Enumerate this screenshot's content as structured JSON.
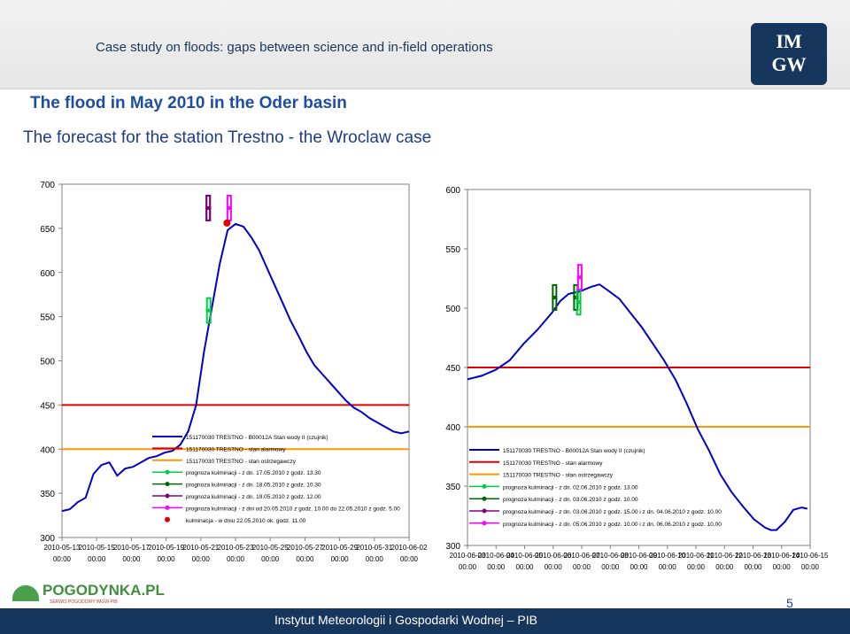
{
  "header": {
    "text": "Case study on floods: gaps between science and in-field operations",
    "logo_line1": "IM",
    "logo_line2": "GW"
  },
  "title": {
    "line1": "The flood in May 2010 in the Oder basin",
    "line2": "The forecast for the station Trestno - the Wroclaw case"
  },
  "footer": {
    "institute": "Instytut Meteorologii i Gospodarki Wodnej – PIB",
    "page": "5",
    "brand_name": "POGODYNKA.PL",
    "brand_sub": "SERWIS POGODOWY IMGW-PIB"
  },
  "colors": {
    "water_level": "#0000cc",
    "alarm": "#e00000",
    "warning": "#ff9900",
    "forecast_green": "#00cc44",
    "forecast_dark_green": "#006600",
    "forecast_purple": "#800080",
    "forecast_magenta": "#ff00ff",
    "culmination": "#e00000"
  },
  "chart_data": [
    {
      "type": "line",
      "ylim": [
        300,
        700
      ],
      "y_ticks": [
        "700",
        "650",
        "600",
        "550",
        "500",
        "450",
        "400",
        "350",
        "300"
      ],
      "x_ticks": [
        [
          "2010-05-13",
          "00:00"
        ],
        [
          "2010-05-15",
          "00:00"
        ],
        [
          "2010-05-17",
          "00:00"
        ],
        [
          "2010-05-19",
          "00:00"
        ],
        [
          "2010-05-21",
          "00:00"
        ],
        [
          "2010-05-23",
          "00:00"
        ],
        [
          "2010-05-25",
          "00:00"
        ],
        [
          "2010-05-27",
          "00:00"
        ],
        [
          "2010-05-29",
          "00:00"
        ],
        [
          "2010-05-31",
          "00:00"
        ],
        [
          "2010-06-02",
          "00:00"
        ]
      ],
      "series": [
        {
          "name": "151170030 TRESTNO - B00012A Stan wody II (czujnik)",
          "x": [
            0,
            0.5,
            1.0,
            1.5,
            2.0,
            2.5,
            3.0,
            3.5,
            4.0,
            4.5,
            5.0,
            5.5,
            6.0,
            6.5,
            7.0,
            7.5,
            8.0,
            8.5,
            9.0,
            9.5,
            10.0,
            10.5,
            11.0,
            11.5,
            12.0,
            12.5,
            13.0,
            13.5,
            14.0,
            14.5,
            15.0,
            15.5,
            16.0,
            16.5,
            17.0,
            17.5,
            18.0,
            18.5,
            19.0,
            19.5,
            20.0,
            20.5,
            21.0,
            21.5,
            22.0
          ],
          "y": [
            330,
            332,
            340,
            345,
            372,
            382,
            385,
            370,
            378,
            380,
            385,
            390,
            392,
            396,
            398,
            405,
            420,
            450,
            510,
            560,
            610,
            648,
            655,
            652,
            640,
            625,
            605,
            585,
            565,
            545,
            528,
            510,
            495,
            485,
            475,
            465,
            455,
            447,
            442,
            435,
            430,
            425,
            420,
            418,
            420
          ]
        },
        {
          "name": "151170030 TRESTNO - stan alarmowy",
          "x": [
            0,
            22
          ],
          "y": [
            450,
            450
          ]
        },
        {
          "name": "151170030 TRESTNO - stan ostrzegawczy",
          "x": [
            0,
            22
          ],
          "y": [
            400,
            400
          ]
        },
        {
          "name": "prognoza kulminacji - z dn. 17.05.2010 z godz. 13.30",
          "x": [
            9.3
          ],
          "y": [
            557
          ]
        },
        {
          "name": "prognoza kulminacji - z dn. 18.05.2010 z godz. 10.30",
          "x": [
            10.0
          ],
          "y": [
            673
          ]
        },
        {
          "name": "prognoza kulminacji - z dn. 19.05.2010 z godz. 12.00",
          "x": [
            10.0
          ],
          "y": [
            673
          ]
        },
        {
          "name": "prognoza kulminacji - z dni od 20.05.2010 z godz. 10.00 do 22.05.2010 z godz. 5.00",
          "x": [
            10.6
          ],
          "y": [
            673
          ]
        },
        {
          "name": "kulminacja - w dniu 22.05.2010 ok. godz. 11.00",
          "x": [
            10.46
          ],
          "y": [
            656
          ]
        }
      ]
    },
    {
      "type": "line",
      "ylim": [
        300,
        600
      ],
      "y_ticks": [
        "600",
        "550",
        "500",
        "450",
        "400",
        "350",
        "300"
      ],
      "x_ticks": [
        [
          "2010-06-03",
          "00:00"
        ],
        [
          "2010-06-04",
          "00:00"
        ],
        [
          "2010-06-05",
          "00:00"
        ],
        [
          "2010-06-06",
          "00:00"
        ],
        [
          "2010-06-07",
          "00:00"
        ],
        [
          "2010-06-08",
          "00:00"
        ],
        [
          "2010-06-09",
          "00:00"
        ],
        [
          "2010-06-10",
          "00:00"
        ],
        [
          "2010-06-11",
          "00:00"
        ],
        [
          "2010-06-12",
          "00:00"
        ],
        [
          "2010-06-13",
          "00:00"
        ],
        [
          "2010-06-14",
          "00:00"
        ],
        [
          "2010-06-15",
          "00:00"
        ]
      ],
      "series": [
        {
          "name": "151170030 TRESTNO - B00012A Stan wody II (czujnik)",
          "x": [
            0,
            0.5,
            1.0,
            1.5,
            2.0,
            2.5,
            3.0,
            3.3,
            3.6,
            4.0,
            4.4,
            4.7,
            5.0,
            5.4,
            5.8,
            6.2,
            6.6,
            7.0,
            7.4,
            7.8,
            8.2,
            8.6,
            9.0,
            9.4,
            9.8,
            10.2,
            10.6,
            10.8,
            11.0,
            11.3,
            11.6,
            11.9,
            12.1
          ],
          "y": [
            440,
            443,
            448,
            456,
            470,
            482,
            496,
            506,
            512,
            514,
            518,
            520,
            515,
            508,
            496,
            484,
            470,
            456,
            440,
            420,
            398,
            380,
            360,
            345,
            333,
            322,
            315,
            313,
            313,
            320,
            330,
            332,
            331
          ]
        },
        {
          "name": "151170030 TRESTNO - stan alarmowy",
          "x": [
            0,
            12.2
          ],
          "y": [
            450,
            450
          ]
        },
        {
          "name": "151170030 TRESTNO - stan ostrzegawczy",
          "x": [
            0,
            12.2
          ],
          "y": [
            400,
            400
          ]
        },
        {
          "name": "prognoza kulminacji - z dn. 02.06.2010 z godz. 13.00",
          "x": [
            3.8
          ],
          "y": [
            505
          ]
        },
        {
          "name": "prognoza kulminacji - z dn. 03.06.2010 z godz. 10.00",
          "x": [
            3.1
          ],
          "y": [
            509
          ]
        },
        {
          "name": "prognoza kulminacji - z dn. 03.06.2010 z godz. 15.00 i z dn. 04.06.2010 z godz. 10.00",
          "x": [
            3.7
          ],
          "y": [
            509
          ]
        },
        {
          "name": "prognoza kulminacji - z dn. 05.06.2010 z godz. 10.00 i z dn. 06.06.2010 z godz. 10.00",
          "x": [
            4.0
          ],
          "y": [
            526
          ]
        }
      ]
    }
  ]
}
